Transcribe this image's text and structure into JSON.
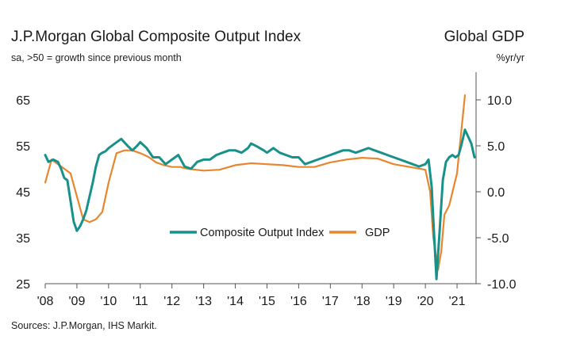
{
  "header": {
    "title": "J.P.Morgan Global Composite Output Index",
    "subtitle": "sa, >50 = growth since previous month",
    "right_title": "Global GDP",
    "right_unit": "%yr/yr"
  },
  "footer": {
    "source": "Sources: J.P.Morgan, IHS Markit."
  },
  "colors": {
    "composite": "#17918A",
    "gdp": "#E8862E",
    "axis": "#555555"
  },
  "chart_data": {
    "type": "line",
    "title": "J.P.Morgan Global Composite Output Index",
    "x_ticks": [
      "'08",
      "'09",
      "'10",
      "'11",
      "'12",
      "'13",
      "'14",
      "'15",
      "'16",
      "'17",
      "'18",
      "'19",
      "'20",
      "'21"
    ],
    "xlim": [
      2008.0,
      2021.6
    ],
    "y_left": {
      "ylim": [
        25,
        70
      ],
      "ticks": [
        "65",
        "55",
        "45",
        "35",
        "25"
      ],
      "tick_values": [
        65,
        55,
        45,
        35,
        25
      ]
    },
    "y_right": {
      "ylim": [
        -10,
        12.5
      ],
      "ticks": [
        "10.0",
        "5.0",
        "0.0",
        "-5.0",
        "-10.0"
      ],
      "tick_values": [
        10,
        5,
        0,
        -5,
        -10
      ]
    },
    "legend": {
      "placement": "center-bottom"
    },
    "series": [
      {
        "name": "Composite Output Index",
        "axis": "left",
        "color": "#17918A",
        "x": [
          2008.0,
          2008.1,
          2008.25,
          2008.4,
          2008.5,
          2008.6,
          2008.7,
          2008.8,
          2008.9,
          2009.0,
          2009.1,
          2009.2,
          2009.3,
          2009.4,
          2009.5,
          2009.6,
          2009.7,
          2009.8,
          2009.9,
          2010.0,
          2010.2,
          2010.4,
          2010.6,
          2010.75,
          2010.9,
          2011.0,
          2011.2,
          2011.4,
          2011.6,
          2011.8,
          2012.0,
          2012.2,
          2012.4,
          2012.6,
          2012.8,
          2013.0,
          2013.2,
          2013.4,
          2013.6,
          2013.8,
          2014.0,
          2014.2,
          2014.4,
          2014.5,
          2014.7,
          2014.9,
          2015.0,
          2015.2,
          2015.4,
          2015.6,
          2015.8,
          2016.0,
          2016.2,
          2016.4,
          2016.6,
          2016.8,
          2017.0,
          2017.2,
          2017.4,
          2017.6,
          2017.8,
          2018.0,
          2018.2,
          2018.4,
          2018.6,
          2018.8,
          2019.0,
          2019.2,
          2019.4,
          2019.6,
          2019.8,
          2020.0,
          2020.1,
          2020.2,
          2020.25,
          2020.35,
          2020.45,
          2020.55,
          2020.65,
          2020.75,
          2020.85,
          2020.95,
          2021.05,
          2021.15,
          2021.25,
          2021.35,
          2021.45,
          2021.55
        ],
        "values": [
          53.0,
          51.5,
          52.0,
          51.5,
          50.0,
          48.0,
          47.5,
          43.0,
          38.5,
          36.5,
          37.5,
          39.0,
          41.0,
          44.0,
          47.0,
          50.5,
          53.0,
          53.5,
          53.8,
          54.5,
          55.5,
          56.5,
          55.0,
          54.0,
          55.0,
          55.8,
          54.5,
          52.5,
          52.5,
          51.0,
          52.0,
          53.0,
          50.5,
          50.0,
          51.5,
          52.0,
          52.0,
          53.0,
          53.5,
          54.0,
          54.0,
          53.5,
          54.5,
          55.5,
          54.8,
          54.0,
          53.5,
          54.5,
          53.5,
          53.0,
          52.5,
          52.5,
          51.0,
          51.5,
          52.0,
          52.5,
          53.0,
          53.5,
          54.0,
          54.0,
          53.5,
          54.0,
          54.5,
          54.0,
          53.5,
          53.0,
          52.5,
          52.0,
          51.5,
          51.0,
          50.5,
          51.0,
          52.0,
          46.0,
          39.0,
          26.0,
          36.5,
          47.5,
          51.5,
          52.5,
          53.0,
          52.5,
          53.0,
          55.5,
          58.5,
          57.0,
          55.5,
          52.5
        ]
      },
      {
        "name": "GDP",
        "axis": "right",
        "color": "#E8862E",
        "x": [
          2008.0,
          2008.2,
          2008.4,
          2008.6,
          2008.8,
          2009.0,
          2009.2,
          2009.4,
          2009.6,
          2009.8,
          2010.0,
          2010.25,
          2010.5,
          2010.75,
          2011.0,
          2011.25,
          2011.5,
          2011.75,
          2012.0,
          2012.25,
          2012.5,
          2012.75,
          2013.0,
          2013.5,
          2014.0,
          2014.5,
          2015.0,
          2015.5,
          2016.0,
          2016.5,
          2017.0,
          2017.5,
          2018.0,
          2018.5,
          2019.0,
          2019.5,
          2020.0,
          2020.15,
          2020.25,
          2020.4,
          2020.5,
          2020.6,
          2020.75,
          2021.0,
          2021.25
        ],
        "values": [
          1.0,
          3.5,
          3.0,
          2.5,
          2.0,
          -0.5,
          -3.0,
          -3.3,
          -3.0,
          -2.2,
          1.0,
          4.2,
          4.5,
          4.5,
          4.2,
          3.8,
          3.2,
          2.9,
          2.7,
          2.7,
          2.5,
          2.4,
          2.3,
          2.4,
          2.9,
          3.1,
          3.0,
          2.9,
          2.7,
          2.7,
          3.2,
          3.5,
          3.7,
          3.6,
          3.0,
          2.7,
          2.4,
          0.0,
          -5.0,
          -8.5,
          -6.5,
          -2.5,
          -1.5,
          2.0,
          10.5
        ]
      }
    ]
  }
}
